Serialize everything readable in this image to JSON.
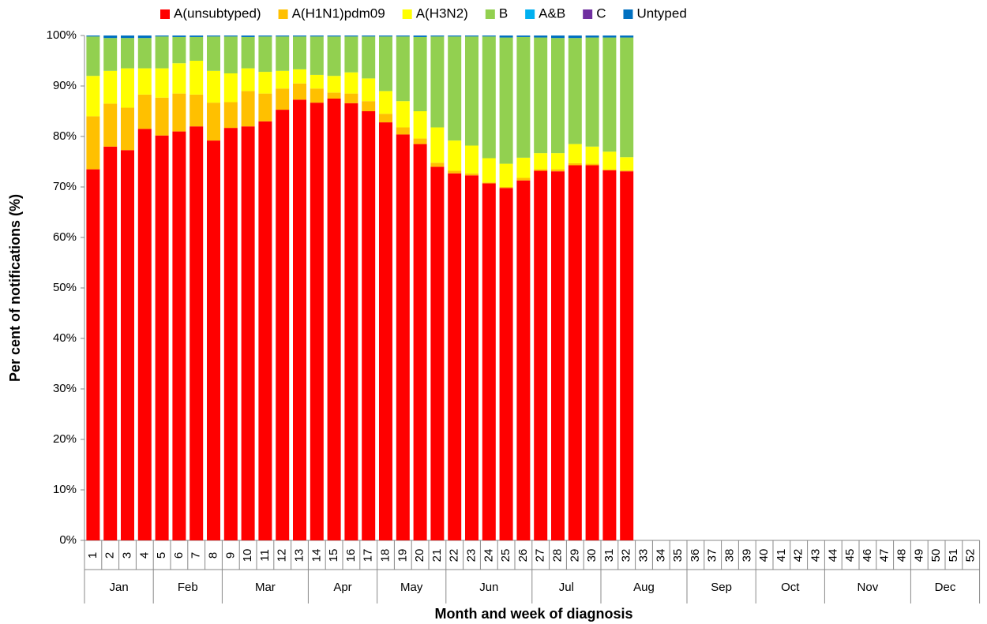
{
  "chart_data": {
    "type": "stacked_bar",
    "y_axis_title": "Per cent of notifications  (%)",
    "x_axis_title": "Month and week of diagnosis",
    "categories": [
      "1",
      "2",
      "3",
      "4",
      "5",
      "6",
      "7",
      "8",
      "9",
      "10",
      "11",
      "12",
      "13",
      "14",
      "15",
      "16",
      "17",
      "18",
      "19",
      "20",
      "21",
      "22",
      "23",
      "24",
      "25",
      "26",
      "27",
      "28",
      "29",
      "30",
      "31",
      "32",
      "33",
      "34",
      "35",
      "36",
      "37",
      "38",
      "39",
      "40",
      "41",
      "42",
      "43",
      "44",
      "45",
      "46",
      "47",
      "48",
      "49",
      "50",
      "51",
      "52"
    ],
    "groups": [
      {
        "label": "Jan",
        "span": 4
      },
      {
        "label": "Feb",
        "span": 4
      },
      {
        "label": "Mar",
        "span": 5
      },
      {
        "label": "Apr",
        "span": 4
      },
      {
        "label": "May",
        "span": 4
      },
      {
        "label": "Jun",
        "span": 5
      },
      {
        "label": "Jul",
        "span": 4
      },
      {
        "label": "Aug",
        "span": 5
      },
      {
        "label": "Sep",
        "span": 4
      },
      {
        "label": "Oct",
        "span": 4
      },
      {
        "label": "Nov",
        "span": 5
      },
      {
        "label": "Dec",
        "span": 4
      }
    ],
    "series": [
      {
        "name": "A(unsubtyped)",
        "color": "#ff0000",
        "values": [
          73.5,
          78,
          77.3,
          81.5,
          80.2,
          81,
          82,
          79.2,
          81.7,
          82,
          83,
          85.3,
          87.3,
          86.7,
          87.5,
          86.6,
          85,
          82.8,
          80.4,
          78.5,
          74,
          72.7,
          72.3,
          70.7,
          69.8,
          71.3,
          73.2,
          73.1,
          74.3,
          74.3,
          73.3,
          73.1,
          null,
          null,
          null,
          null,
          null,
          null,
          null,
          null,
          null,
          null,
          null,
          null,
          null,
          null,
          null,
          null,
          null,
          null,
          null,
          null
        ]
      },
      {
        "name": "A(H1N1)pdm09",
        "color": "#ffc000",
        "values": [
          10.5,
          8.5,
          8.4,
          6.8,
          7.5,
          7.5,
          6.3,
          7.5,
          5.1,
          7,
          5.5,
          4.2,
          3.2,
          2.8,
          1.2,
          1.9,
          2,
          1.7,
          1.4,
          1.1,
          0.8,
          0.5,
          0.4,
          0.2,
          0.2,
          0.5,
          0.3,
          0.4,
          0.4,
          0.3,
          0.2,
          0.2,
          null,
          null,
          null,
          null,
          null,
          null,
          null,
          null,
          null,
          null,
          null,
          null,
          null,
          null,
          null,
          null,
          null,
          null,
          null,
          null
        ]
      },
      {
        "name": "A(H3N2)",
        "color": "#ffff00",
        "values": [
          8,
          6.5,
          7.8,
          5.2,
          5.8,
          6,
          6.7,
          6.3,
          5.7,
          4.5,
          4.3,
          3.5,
          2.8,
          2.7,
          3.3,
          4.2,
          4.5,
          4.5,
          5.2,
          5.4,
          7,
          6,
          5.5,
          4.8,
          4.6,
          4,
          3.2,
          3.2,
          3.8,
          3.4,
          3.5,
          2.6,
          null,
          null,
          null,
          null,
          null,
          null,
          null,
          null,
          null,
          null,
          null,
          null,
          null,
          null,
          null,
          null,
          null,
          null,
          null,
          null
        ]
      },
      {
        "name": "B",
        "color": "#92d050",
        "values": [
          7.8,
          6.5,
          6,
          6,
          6.3,
          5.2,
          4.7,
          6.8,
          7.3,
          6.2,
          7,
          6.8,
          6.5,
          7.6,
          7.8,
          7.1,
          8.3,
          10.8,
          12.8,
          14.7,
          18,
          20.6,
          21.6,
          24.1,
          25,
          23.9,
          22.9,
          22.8,
          21,
          21.6,
          22.6,
          23.7,
          null,
          null,
          null,
          null,
          null,
          null,
          null,
          null,
          null,
          null,
          null,
          null,
          null,
          null,
          null,
          null,
          null,
          null,
          null,
          null
        ]
      },
      {
        "name": "A&B",
        "color": "#00b0f0",
        "values": [
          0,
          0,
          0,
          0,
          0,
          0,
          0,
          0,
          0,
          0,
          0,
          0,
          0,
          0,
          0,
          0,
          0,
          0,
          0,
          0,
          0,
          0,
          0,
          0,
          0,
          0,
          0,
          0,
          0,
          0,
          0,
          0,
          null,
          null,
          null,
          null,
          null,
          null,
          null,
          null,
          null,
          null,
          null,
          null,
          null,
          null,
          null,
          null,
          null,
          null,
          null,
          null
        ]
      },
      {
        "name": "C",
        "color": "#7030a0",
        "values": [
          0,
          0,
          0,
          0,
          0,
          0,
          0,
          0,
          0,
          0,
          0,
          0,
          0,
          0,
          0,
          0,
          0,
          0,
          0,
          0,
          0,
          0,
          0,
          0,
          0,
          0,
          0,
          0,
          0,
          0,
          0,
          0,
          null,
          null,
          null,
          null,
          null,
          null,
          null,
          null,
          null,
          null,
          null,
          null,
          null,
          null,
          null,
          null,
          null,
          null,
          null,
          null
        ]
      },
      {
        "name": "Untyped",
        "color": "#0070c0",
        "values": [
          0.2,
          0.5,
          0.5,
          0.5,
          0.2,
          0.3,
          0.3,
          0.2,
          0.2,
          0.3,
          0.2,
          0.2,
          0.2,
          0.2,
          0.2,
          0.2,
          0.2,
          0.2,
          0.2,
          0.3,
          0.2,
          0.2,
          0.2,
          0.2,
          0.4,
          0.3,
          0.4,
          0.5,
          0.5,
          0.4,
          0.4,
          0.4,
          null,
          null,
          null,
          null,
          null,
          null,
          null,
          null,
          null,
          null,
          null,
          null,
          null,
          null,
          null,
          null,
          null,
          null,
          null,
          null
        ]
      }
    ],
    "ylim": [
      0,
      100
    ],
    "yticks": [
      {
        "value": 0,
        "label": "0%"
      },
      {
        "value": 10,
        "label": "10%"
      },
      {
        "value": 20,
        "label": "20%"
      },
      {
        "value": 30,
        "label": "30%"
      },
      {
        "value": 40,
        "label": "40%"
      },
      {
        "value": 50,
        "label": "50%"
      },
      {
        "value": 60,
        "label": "60%"
      },
      {
        "value": 70,
        "label": "70%"
      },
      {
        "value": 80,
        "label": "80%"
      },
      {
        "value": 90,
        "label": "90%"
      },
      {
        "value": 100,
        "label": "100%"
      }
    ],
    "grid": false
  }
}
